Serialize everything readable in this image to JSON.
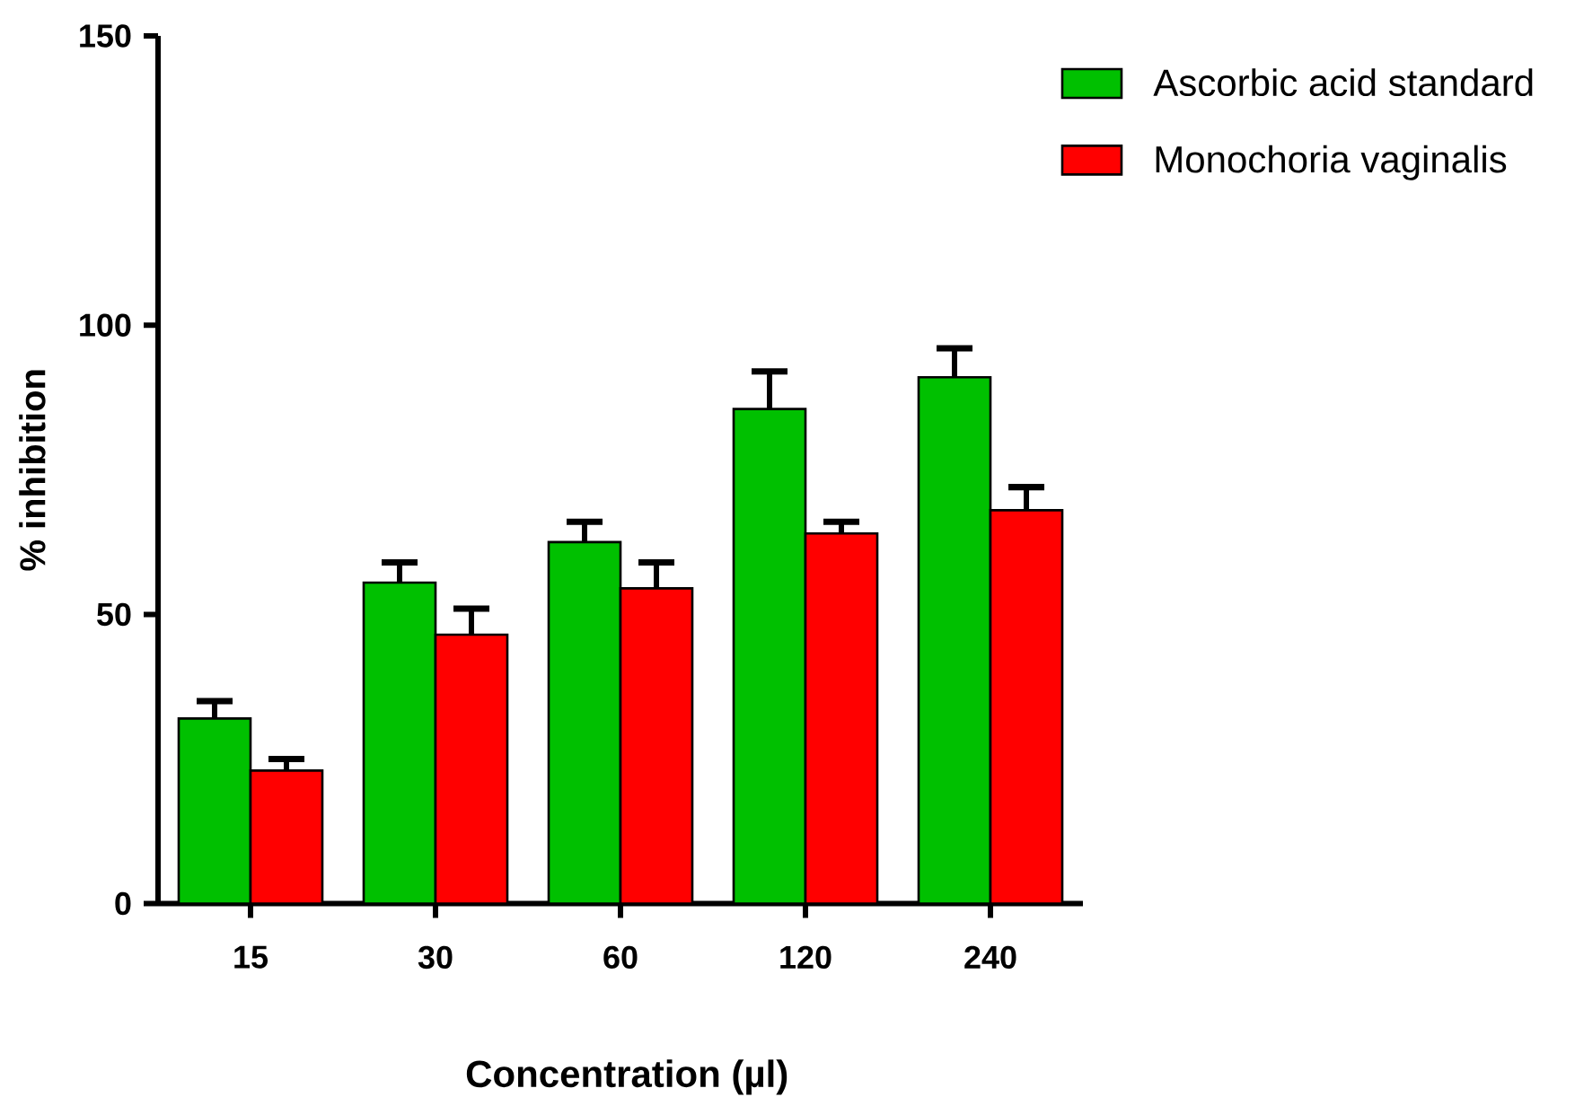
{
  "chart_data": {
    "type": "bar",
    "xlabel": "Concentration (µl)",
    "ylabel": "% inhibition",
    "categories": [
      "15",
      "30",
      "60",
      "120",
      "240"
    ],
    "series": [
      {
        "name": "Ascorbic acid standard",
        "color": "#00c000",
        "values": [
          32,
          55.5,
          62.5,
          85.5,
          91
        ],
        "errors": [
          [
            32,
            35
          ],
          [
            55.5,
            59
          ],
          [
            62.5,
            66
          ],
          [
            85.5,
            92
          ],
          [
            91,
            96
          ]
        ]
      },
      {
        "name": "Monochoria vaginalis",
        "color": "#ff0000",
        "values": [
          23,
          46.5,
          54.5,
          64,
          68
        ],
        "errors": [
          [
            23,
            25
          ],
          [
            46.5,
            51
          ],
          [
            54.5,
            59
          ],
          [
            64,
            66
          ],
          [
            68,
            72
          ]
        ]
      }
    ],
    "ylim": [
      0,
      150
    ],
    "yticks": [
      0,
      50,
      100,
      150
    ],
    "legend": "top right"
  }
}
